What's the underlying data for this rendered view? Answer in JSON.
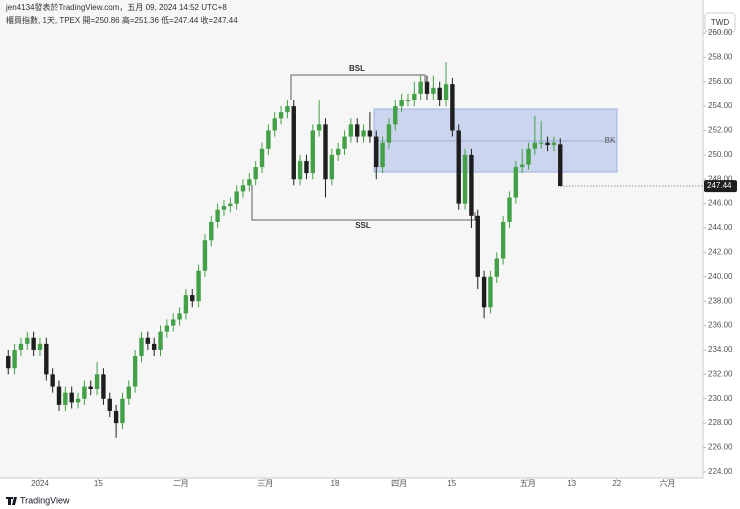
{
  "chart_data": {
    "type": "candlestick",
    "title": "jen4134發表於TradingView.com，五月 09, 2024 14:52 UTC+8",
    "subtitle": "櫃買指數, 1天, TPEX  開=250.86  高=251.36  低=247.44  收=247.44",
    "currency": "TWD",
    "brand": "TradingView",
    "annotations": [
      "BSL",
      "SSL",
      "BK"
    ],
    "up_color": "#43a047",
    "down_color": "#1e1e1e",
    "x": [
      0,
      1,
      2,
      3,
      4,
      5,
      6,
      7,
      8,
      9,
      10,
      11,
      12,
      13,
      14,
      15,
      16,
      17,
      18,
      19,
      20,
      21,
      22,
      23,
      24,
      25,
      26,
      27,
      28,
      29,
      30,
      31,
      32,
      33,
      34,
      35,
      36,
      37,
      38,
      39,
      40,
      41,
      42,
      43,
      44,
      45,
      46,
      47,
      48,
      49,
      50,
      51,
      52,
      53,
      54,
      55,
      56,
      57,
      58,
      59,
      60,
      61,
      62,
      63,
      64,
      65,
      66,
      67,
      68,
      69,
      70,
      71,
      72,
      73,
      74,
      75,
      76,
      77,
      78,
      79,
      80,
      81,
      82,
      83,
      84,
      85,
      86,
      87
    ],
    "open": [
      233.5,
      232.5,
      234,
      234.5,
      235,
      234,
      234.5,
      232,
      231,
      229.5,
      230.5,
      229.7,
      230,
      231,
      230.8,
      232,
      230,
      229,
      228,
      230,
      231,
      233.5,
      235,
      234.5,
      234,
      235.5,
      236,
      236.5,
      237,
      238.5,
      238,
      240.5,
      243,
      244.5,
      245.5,
      245.8,
      246,
      247,
      247.5,
      248,
      249,
      250.5,
      252,
      253,
      253.5,
      254,
      248,
      249.5,
      248.5,
      252,
      252.5,
      248,
      250,
      250.5,
      251.5,
      252.5,
      251.5,
      252,
      251.5,
      249,
      251,
      252.5,
      254,
      254.5,
      254.5,
      255,
      256,
      255,
      255.5,
      254.5,
      255.8,
      252,
      246,
      250,
      245,
      240,
      237.5,
      240,
      241.5,
      244.5,
      246.5,
      249,
      249.2,
      250.5,
      251,
      251,
      250.8,
      250.86
    ],
    "high": [
      234,
      234.5,
      235,
      235.5,
      235.5,
      235,
      235,
      232.5,
      231.5,
      231,
      231,
      230.5,
      231.5,
      231.5,
      233,
      232.5,
      230.5,
      229.5,
      230.5,
      231.5,
      234,
      235.5,
      235.5,
      235,
      236,
      236.5,
      237,
      237.5,
      239,
      239,
      241,
      243.5,
      245,
      246,
      246.3,
      246.5,
      247.5,
      248,
      248.5,
      249.5,
      251,
      252.5,
      253.5,
      254,
      254.5,
      254.5,
      250,
      250,
      252.5,
      254.5,
      253,
      250.5,
      251,
      252,
      253,
      253,
      252.5,
      253.5,
      252,
      251.5,
      253,
      254.5,
      255,
      255,
      256,
      256.5,
      256.5,
      256.5,
      256,
      257.6,
      256.3,
      252.5,
      250.5,
      250.5,
      245.5,
      240.5,
      240.5,
      242,
      245,
      247,
      249.5,
      250.5,
      251,
      253.2,
      252.8,
      251.5,
      251.5,
      251.36
    ],
    "low": [
      232,
      232,
      233.5,
      234,
      233.5,
      233.5,
      231.5,
      230.5,
      229,
      229,
      229.2,
      229.2,
      229.5,
      230.3,
      230.3,
      229.5,
      228.5,
      226.8,
      227.5,
      229.5,
      230.5,
      233,
      234,
      233.5,
      233.5,
      235,
      235.5,
      236,
      236.5,
      237.5,
      237.5,
      240,
      242.5,
      244,
      245,
      245.3,
      245.5,
      246.5,
      247,
      247.5,
      248.5,
      250,
      251.5,
      252.5,
      253,
      247.5,
      247.5,
      248,
      248,
      251.5,
      246.5,
      247.5,
      249.5,
      250,
      251,
      251,
      251,
      251,
      248,
      248.5,
      250.5,
      252,
      253.5,
      254,
      254,
      254.5,
      254.5,
      254.5,
      254,
      254,
      251.5,
      245.5,
      245.5,
      244,
      239,
      236.6,
      237,
      239.5,
      241,
      244,
      246,
      248.5,
      248.8,
      250,
      250.5,
      250.3,
      250.3,
      247.44
    ],
    "close": [
      232.5,
      234,
      234.5,
      235,
      234,
      234.5,
      232,
      231,
      229.5,
      230.5,
      229.7,
      230,
      231,
      230.8,
      232,
      230,
      229,
      228,
      230,
      231,
      233.5,
      235,
      234.5,
      234,
      235.5,
      236,
      236.5,
      237,
      238.5,
      238,
      240.5,
      243,
      244.5,
      245.5,
      245.8,
      246,
      247,
      247.5,
      248,
      249,
      250.5,
      252,
      253,
      253.5,
      254,
      248,
      249.5,
      248.5,
      252,
      252.5,
      248,
      250,
      250.5,
      251.5,
      252.5,
      251.5,
      252,
      251.5,
      249,
      251,
      252.5,
      254,
      254.5,
      254.5,
      255,
      256,
      255,
      255.5,
      254.5,
      255.8,
      252,
      246,
      250,
      245,
      240,
      237.5,
      240,
      241.5,
      244.5,
      246.5,
      249,
      249.2,
      250.5,
      251,
      251,
      250.8,
      251,
      247.44
    ],
    "xlim": [
      -1.3,
      109.5
    ],
    "xticks": [
      {
        "value": 5,
        "label": "2024"
      },
      {
        "value": 14.2,
        "label": "15"
      },
      {
        "value": 27.2,
        "label": "二月"
      },
      {
        "value": 40.5,
        "label": "三月"
      },
      {
        "value": 51.5,
        "label": "18"
      },
      {
        "value": 61.6,
        "label": "四月"
      },
      {
        "value": 69.9,
        "label": "15"
      },
      {
        "value": 81.9,
        "label": "五月"
      },
      {
        "value": 88.8,
        "label": "13"
      },
      {
        "value": 95.9,
        "label": "22"
      },
      {
        "value": 103.9,
        "label": "六月"
      }
    ],
    "ylim": [
      223.5,
      262.7
    ],
    "yticks": [
      {
        "value": 224,
        "label": "224.00"
      },
      {
        "value": 226,
        "label": "226.00"
      },
      {
        "value": 228,
        "label": "228.00"
      },
      {
        "value": 230,
        "label": "230.00"
      },
      {
        "value": 232,
        "label": "232.00"
      },
      {
        "value": 234,
        "label": "234.00"
      },
      {
        "value": 236,
        "label": "236.00"
      },
      {
        "value": 238,
        "label": "238.00"
      },
      {
        "value": 240,
        "label": "240.00"
      },
      {
        "value": 242,
        "label": "242.00"
      },
      {
        "value": 244,
        "label": "244.00"
      },
      {
        "value": 246,
        "label": "246.00"
      },
      {
        "value": 248,
        "label": "248.00"
      },
      {
        "value": 250,
        "label": "250.00"
      },
      {
        "value": 252,
        "label": "252.00"
      },
      {
        "value": 254,
        "label": "254.00"
      },
      {
        "value": 256,
        "label": "256.00"
      },
      {
        "value": 258,
        "label": "258.00"
      },
      {
        "value": 260,
        "label": "260.00"
      }
    ]
  }
}
